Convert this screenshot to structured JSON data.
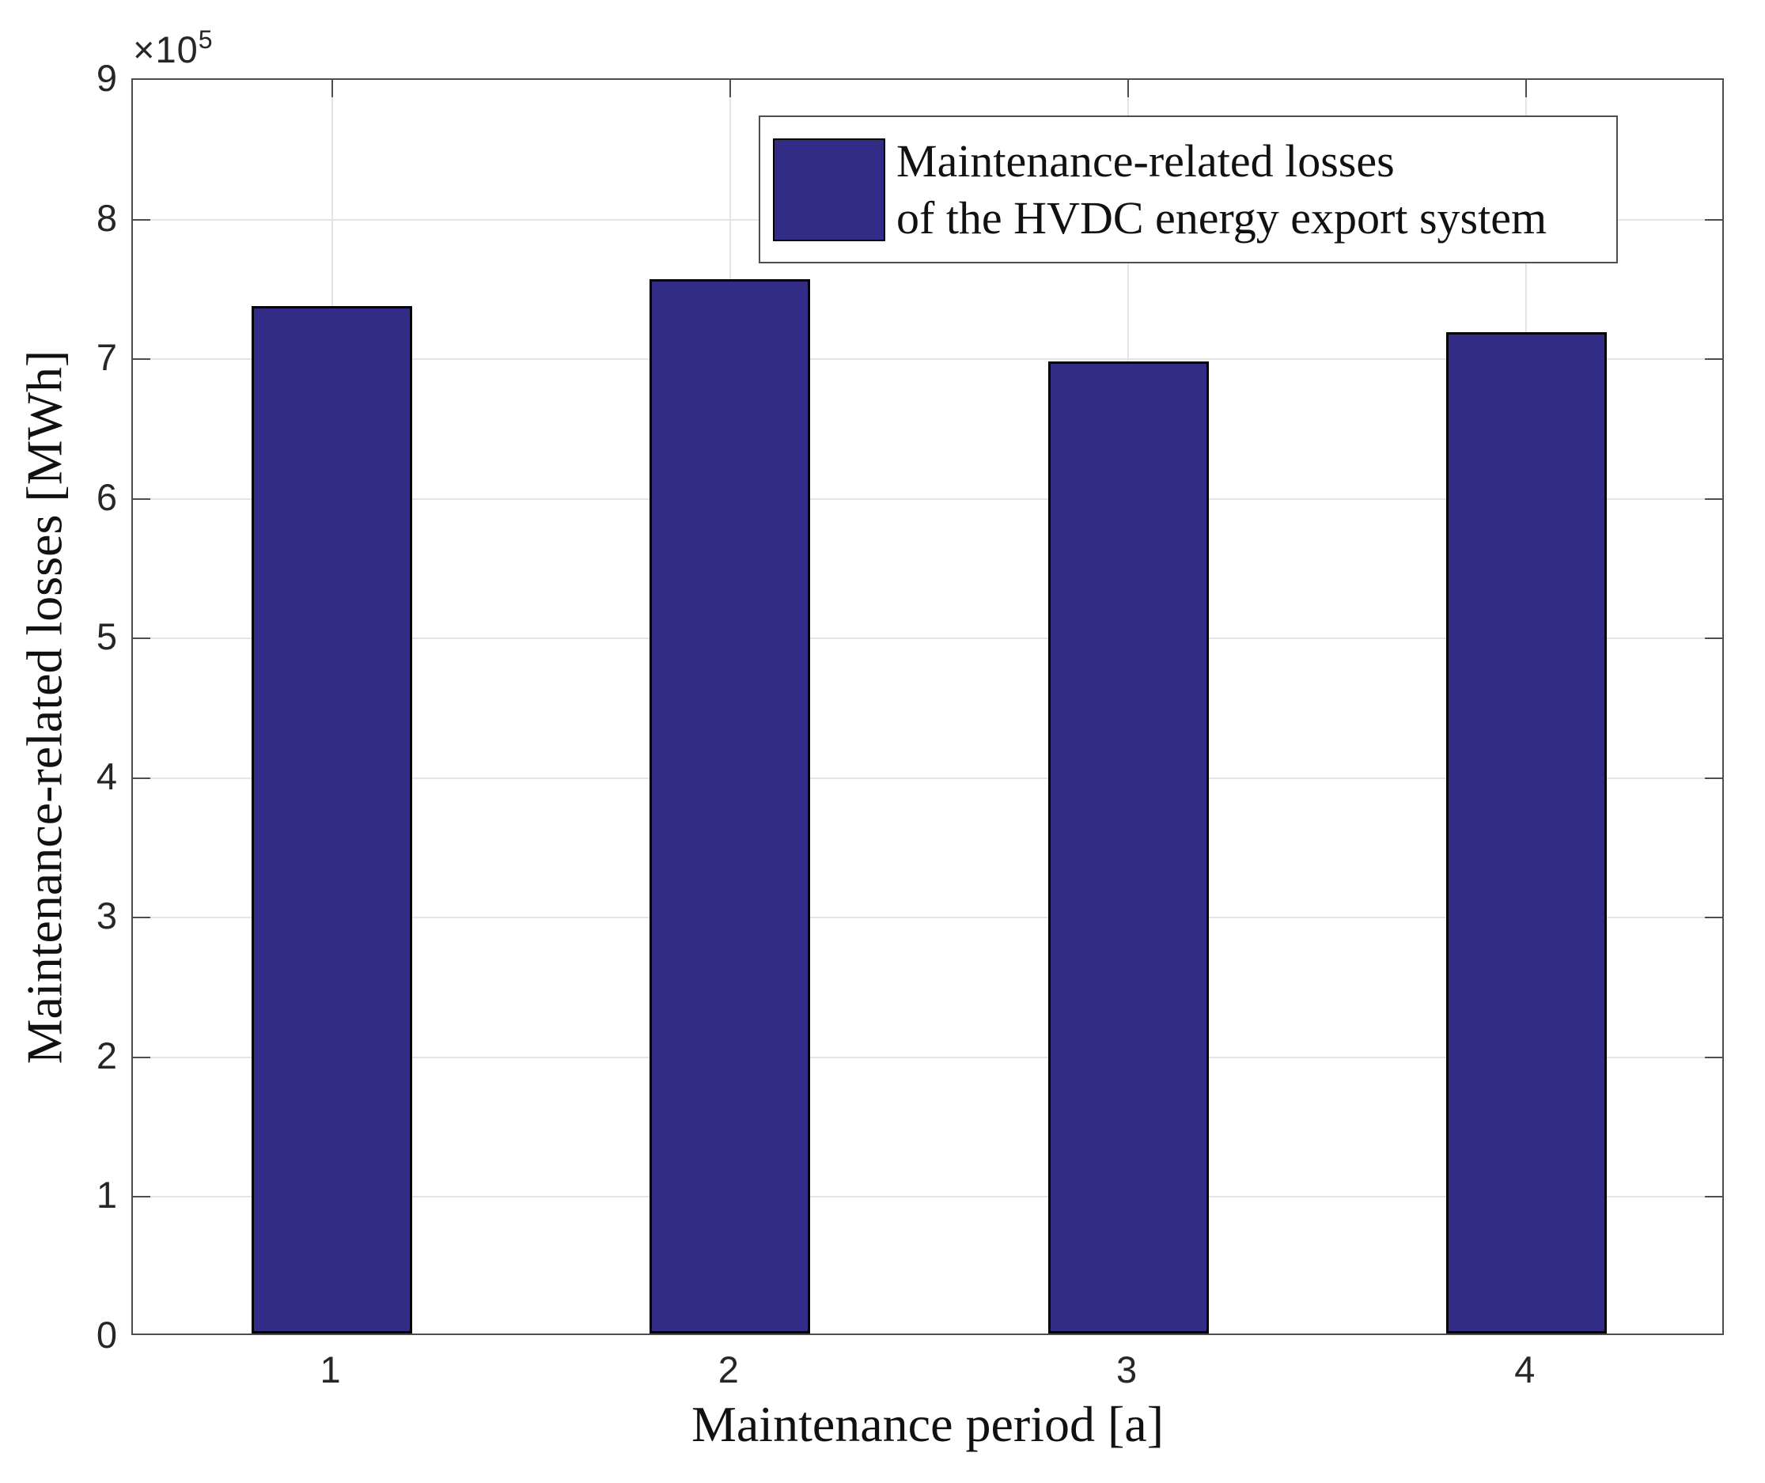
{
  "chart_data": {
    "type": "bar",
    "title": "",
    "categories": [
      "1",
      "2",
      "3",
      "4"
    ],
    "values": [
      736000,
      755000,
      696000,
      717000
    ],
    "xlabel": "Maintenance period [a]",
    "ylabel": "Maintenance-related losses [MWh]",
    "ylim": [
      0,
      900000
    ],
    "y_tick_values": [
      0,
      100000,
      200000,
      300000,
      400000,
      500000,
      600000,
      700000,
      800000,
      900000
    ],
    "y_tick_labels": [
      "0",
      "1",
      "2",
      "3",
      "4",
      "5",
      "6",
      "7",
      "8",
      "9"
    ],
    "y_exponent": {
      "base": "×10",
      "power": "5"
    },
    "grid": true,
    "legend": {
      "position": "top-right",
      "lines": [
        "Maintenance-related losses",
        "of the HVDC energy export system"
      ]
    },
    "colors": {
      "bar_fill": "#332C87",
      "bar_edge": "#000000",
      "axis": "#4d4d4d",
      "gridline": "#e4e4e4",
      "background": "#ffffff"
    }
  }
}
